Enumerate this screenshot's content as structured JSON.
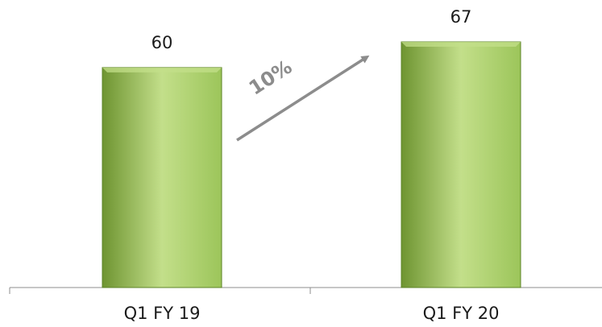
{
  "chart_data": {
    "type": "bar",
    "categories": [
      "Q1 FY 19",
      "Q1 FY 20"
    ],
    "values": [
      60,
      67
    ],
    "data_labels": [
      "60",
      "67"
    ],
    "annotation": "10%",
    "colors": {
      "bar_light": "#c3df8a",
      "bar_mid": "#9cc55a",
      "bar_dark": "#6e9431",
      "bar_border": "#5e8428",
      "arrow": "#8c8c8c",
      "axis": "#8c8c8c"
    }
  }
}
